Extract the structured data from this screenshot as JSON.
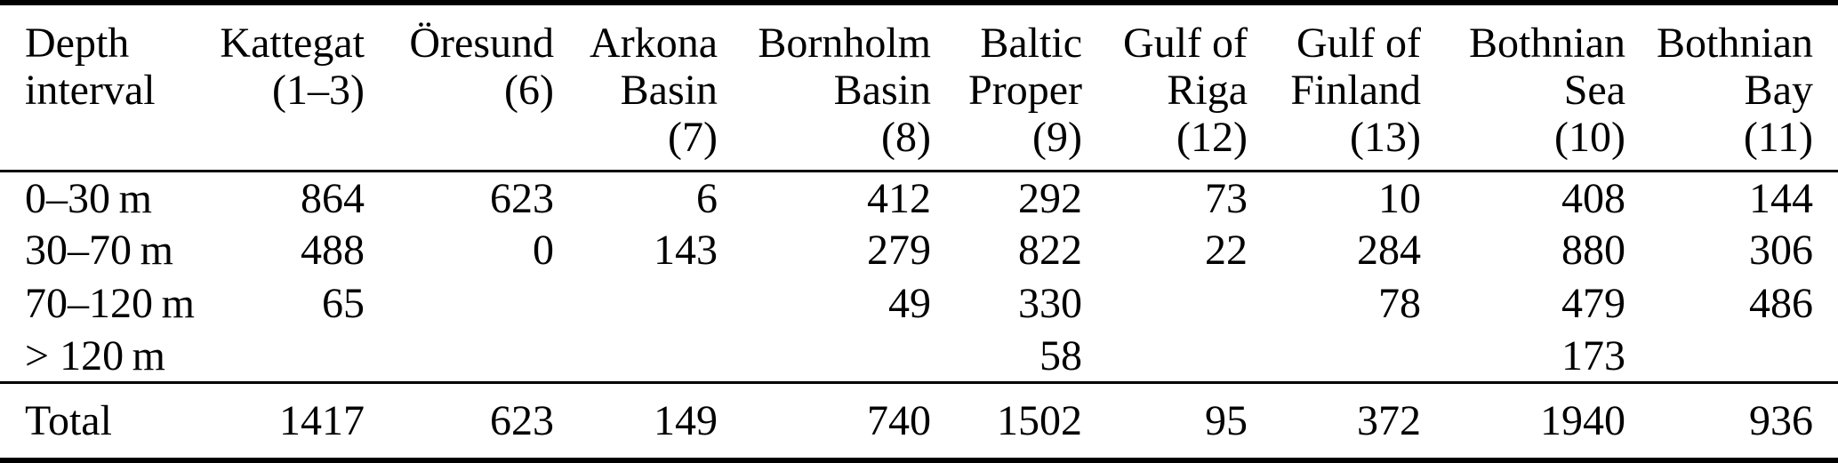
{
  "table": {
    "columns": [
      {
        "id": "depth-interval",
        "lines": [
          "Depth",
          "interval"
        ]
      },
      {
        "id": "kattegat",
        "lines": [
          "Kattegat",
          "(1–3)"
        ]
      },
      {
        "id": "oresund",
        "lines": [
          "Öresund",
          "(6)"
        ]
      },
      {
        "id": "arkona-basin",
        "lines": [
          "Arkona",
          "Basin",
          "(7)"
        ]
      },
      {
        "id": "bornholm-basin",
        "lines": [
          "Bornholm",
          "Basin",
          "(8)"
        ]
      },
      {
        "id": "baltic-proper",
        "lines": [
          "Baltic",
          "Proper",
          "(9)"
        ]
      },
      {
        "id": "gulf-of-riga",
        "lines": [
          "Gulf of",
          "Riga",
          "(12)"
        ]
      },
      {
        "id": "gulf-of-finland",
        "lines": [
          "Gulf of",
          "Finland",
          "(13)"
        ]
      },
      {
        "id": "bothnian-sea",
        "lines": [
          "Bothnian",
          "Sea",
          "(10)"
        ]
      },
      {
        "id": "bothnian-bay",
        "lines": [
          "Bothnian",
          "Bay",
          "(11)"
        ]
      }
    ],
    "rows": [
      {
        "label": "0–30 m",
        "values": [
          "864",
          "623",
          "6",
          "412",
          "292",
          "73",
          "10",
          "408",
          "144"
        ]
      },
      {
        "label": "30–70 m",
        "values": [
          "488",
          "0",
          "143",
          "279",
          "822",
          "22",
          "284",
          "880",
          "306"
        ]
      },
      {
        "label": "70–120 m",
        "values": [
          "65",
          "",
          "",
          "49",
          "330",
          "",
          "78",
          "479",
          "486"
        ]
      },
      {
        "label": "> 120 m",
        "values": [
          "",
          "",
          "",
          "",
          "58",
          "",
          "",
          "173",
          ""
        ]
      }
    ],
    "total_row": {
      "label": "Total",
      "values": [
        "1417",
        "623",
        "149",
        "740",
        "1502",
        "95",
        "372",
        "1940",
        "936"
      ]
    }
  },
  "colors": {
    "text": "#000000",
    "background": "#ffffff",
    "rule": "#000000"
  }
}
